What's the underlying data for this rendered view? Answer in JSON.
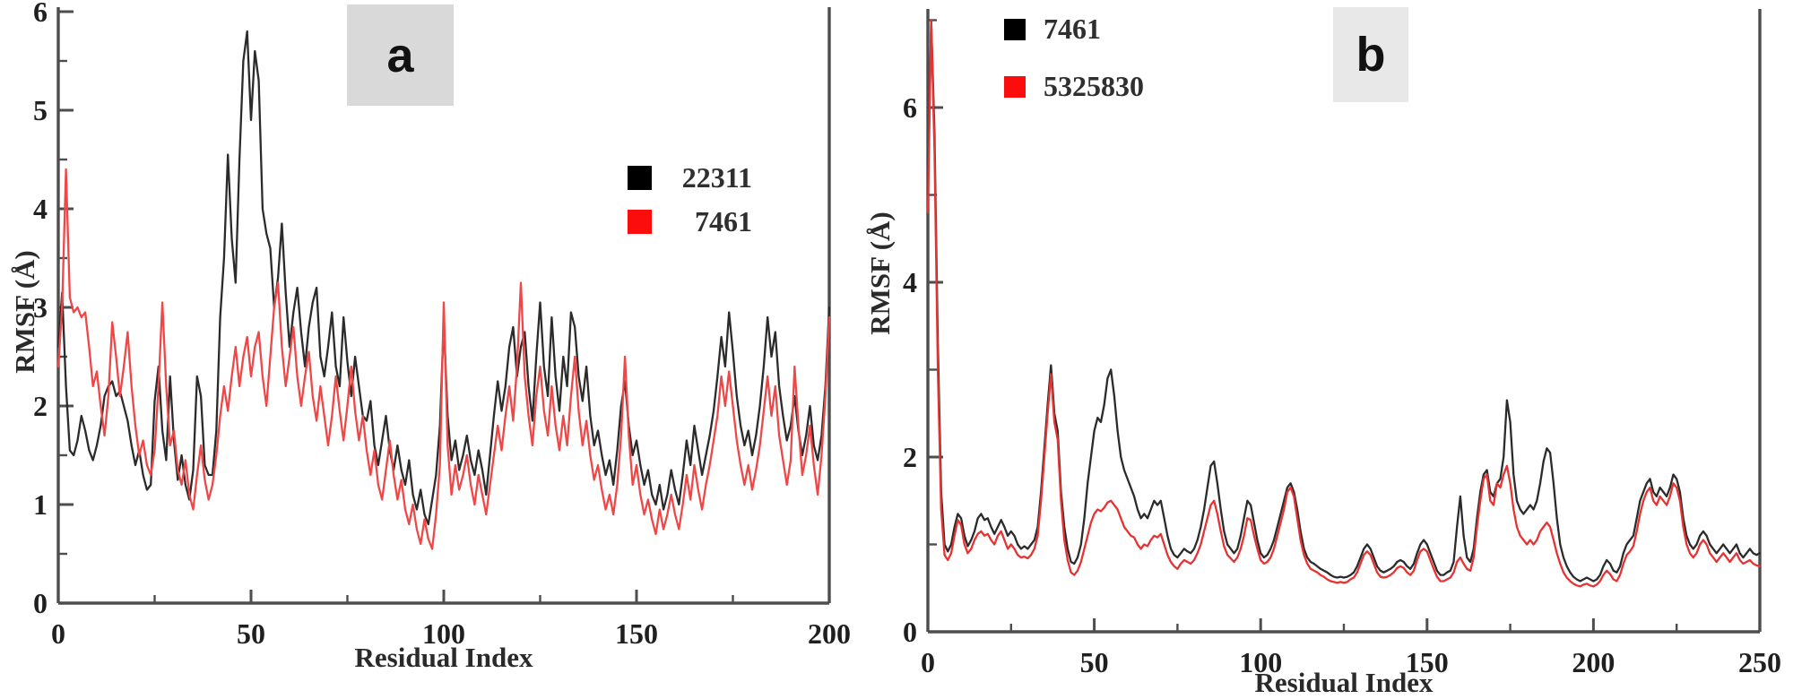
{
  "figure": {
    "background": "#ffffff",
    "colors": {
      "axis": "#4d4d4d",
      "tick_text": "#1f1f1f",
      "panel_label_bg_a": "#d9d9d9",
      "panel_label_bg_b": "#e8e8e8"
    }
  },
  "chart_data": [
    {
      "type": "line",
      "panel_label": "a",
      "title": "",
      "xlabel": "Residual Index",
      "ylabel": "RMSF (Å)",
      "xlim": [
        0,
        200
      ],
      "ylim": [
        0,
        6.2
      ],
      "xticks": [
        0,
        50,
        100,
        150,
        200
      ],
      "xminorticks": [
        25,
        75,
        125,
        175
      ],
      "yticks": [
        0,
        1,
        2,
        3,
        4,
        5,
        6
      ],
      "yminorticks": [
        0.5,
        1.5,
        2.5,
        3.5,
        4.5,
        5.5
      ],
      "grid": false,
      "legend_position": "inside upper right area of plot",
      "x_step": 1,
      "series": [
        {
          "name": "22311",
          "color": "#2b2b2b",
          "swatch_color": "#000000",
          "values": [
            2.6,
            3.15,
            2.2,
            1.55,
            1.5,
            1.65,
            1.9,
            1.75,
            1.55,
            1.45,
            1.6,
            1.8,
            2.1,
            2.2,
            2.25,
            2.1,
            2.15,
            2.0,
            1.85,
            1.6,
            1.4,
            1.55,
            1.3,
            1.15,
            1.2,
            2.05,
            2.4,
            1.75,
            1.45,
            2.3,
            1.65,
            1.25,
            1.5,
            1.2,
            1.05,
            1.35,
            2.3,
            2.1,
            1.4,
            1.3,
            1.3,
            1.75,
            2.9,
            3.5,
            4.55,
            3.7,
            3.25,
            4.5,
            5.5,
            5.8,
            4.9,
            5.6,
            5.3,
            4.0,
            3.75,
            3.6,
            3.0,
            3.3,
            3.85,
            3.15,
            2.6,
            2.95,
            3.2,
            2.75,
            2.4,
            2.8,
            3.05,
            3.2,
            2.5,
            2.3,
            2.6,
            2.95,
            2.4,
            2.2,
            2.9,
            2.45,
            2.1,
            2.5,
            2.2,
            1.9,
            1.85,
            2.05,
            1.6,
            1.4,
            1.65,
            1.9,
            1.55,
            1.35,
            1.6,
            1.35,
            1.2,
            1.45,
            1.1,
            0.95,
            1.15,
            0.9,
            0.8,
            1.05,
            1.3,
            1.8,
            2.85,
            1.9,
            1.45,
            1.65,
            1.35,
            1.5,
            1.7,
            1.45,
            1.3,
            1.55,
            1.35,
            1.1,
            1.5,
            1.9,
            2.25,
            1.95,
            2.2,
            2.6,
            2.8,
            2.3,
            2.6,
            2.75,
            2.2,
            1.85,
            2.5,
            3.05,
            2.4,
            2.1,
            2.9,
            2.3,
            1.95,
            2.5,
            2.2,
            2.95,
            2.8,
            2.3,
            2.05,
            2.4,
            1.9,
            1.6,
            1.75,
            1.5,
            1.3,
            1.45,
            1.2,
            1.55,
            2.0,
            2.25,
            1.8,
            1.5,
            1.65,
            1.4,
            1.2,
            1.35,
            1.1,
            1.0,
            1.2,
            0.95,
            1.1,
            1.35,
            1.15,
            1.0,
            1.3,
            1.65,
            1.4,
            1.8,
            1.55,
            1.3,
            1.5,
            1.7,
            1.95,
            2.3,
            2.7,
            2.4,
            2.95,
            2.55,
            2.1,
            1.8,
            1.6,
            1.75,
            1.5,
            1.7,
            2.0,
            2.4,
            2.9,
            2.5,
            2.75,
            2.2,
            1.9,
            1.65,
            1.8,
            2.1,
            1.75,
            1.5,
            1.7,
            2.0,
            1.6,
            1.45,
            1.7,
            2.2,
            3.0
          ]
        },
        {
          "name": "7461",
          "color": "#ef4747",
          "swatch_color": "#fb0d0d",
          "values": [
            2.4,
            3.0,
            4.4,
            3.1,
            2.95,
            3.0,
            2.9,
            2.95,
            2.6,
            2.2,
            2.35,
            2.0,
            1.7,
            2.1,
            2.85,
            2.5,
            2.1,
            2.4,
            2.75,
            2.2,
            1.8,
            1.5,
            1.65,
            1.4,
            1.3,
            1.55,
            2.2,
            3.05,
            2.2,
            1.6,
            1.75,
            1.35,
            1.2,
            1.45,
            1.1,
            0.95,
            1.3,
            1.6,
            1.25,
            1.05,
            1.2,
            1.5,
            1.9,
            2.2,
            1.95,
            2.3,
            2.6,
            2.2,
            2.5,
            2.7,
            2.3,
            2.6,
            2.75,
            2.3,
            2.0,
            2.5,
            3.0,
            3.25,
            2.6,
            2.2,
            2.5,
            2.8,
            2.3,
            2.0,
            2.3,
            2.55,
            2.1,
            1.85,
            2.2,
            1.9,
            1.6,
            1.9,
            2.3,
            1.95,
            1.65,
            2.0,
            2.4,
            1.95,
            1.65,
            1.9,
            1.55,
            1.3,
            1.55,
            1.2,
            1.05,
            1.35,
            1.65,
            1.3,
            1.05,
            1.25,
            0.95,
            0.8,
            1.0,
            0.75,
            0.6,
            0.85,
            0.65,
            0.55,
            0.9,
            1.4,
            3.05,
            1.6,
            1.1,
            1.4,
            1.15,
            1.3,
            1.5,
            1.2,
            1.0,
            1.3,
            1.1,
            0.9,
            1.2,
            1.5,
            1.8,
            1.55,
            1.9,
            2.2,
            1.85,
            2.4,
            3.25,
            2.3,
            1.9,
            1.6,
            2.1,
            2.4,
            1.95,
            1.7,
            2.2,
            1.8,
            1.55,
            1.9,
            1.6,
            2.1,
            2.5,
            1.95,
            1.6,
            1.85,
            1.5,
            1.25,
            1.4,
            1.15,
            0.95,
            1.1,
            0.9,
            1.2,
            1.7,
            2.5,
            1.7,
            1.2,
            1.4,
            1.1,
            0.9,
            1.05,
            0.85,
            0.7,
            0.95,
            0.75,
            0.9,
            1.1,
            0.9,
            0.75,
            1.0,
            1.3,
            1.05,
            1.4,
            1.15,
            0.95,
            1.2,
            1.4,
            1.65,
            1.9,
            2.3,
            2.0,
            2.35,
            2.0,
            1.65,
            1.4,
            1.2,
            1.4,
            1.15,
            1.35,
            1.6,
            1.95,
            2.3,
            1.9,
            2.2,
            1.7,
            1.45,
            1.2,
            1.45,
            2.4,
            1.8,
            1.3,
            1.5,
            1.8,
            1.4,
            1.1,
            1.5,
            2.1,
            2.9
          ]
        }
      ]
    },
    {
      "type": "line",
      "panel_label": "b",
      "title": "",
      "xlabel": "Residual Index",
      "ylabel": "RMSF (Å)",
      "xlim": [
        0,
        250
      ],
      "ylim": [
        0,
        7.1
      ],
      "xticks": [
        0,
        50,
        100,
        150,
        200,
        250
      ],
      "xminorticks": [
        25,
        75,
        125,
        175,
        225
      ],
      "yticks": [
        0,
        2,
        4,
        6
      ],
      "yminorticks": [
        1,
        3,
        5,
        7
      ],
      "grid": false,
      "legend_position": "upper left above plot area",
      "x_step": 1,
      "series": [
        {
          "name": "7461",
          "color": "#2b2b2b",
          "swatch_color": "#000000",
          "values": [
            5.0,
            7.0,
            5.7,
            3.3,
            1.6,
            1.0,
            0.92,
            1.0,
            1.2,
            1.35,
            1.3,
            1.1,
            0.98,
            1.05,
            1.15,
            1.3,
            1.35,
            1.28,
            1.3,
            1.2,
            1.12,
            1.2,
            1.28,
            1.2,
            1.1,
            1.15,
            1.1,
            1.0,
            0.95,
            0.98,
            0.95,
            1.0,
            1.05,
            1.2,
            1.6,
            2.1,
            2.6,
            3.05,
            2.5,
            2.3,
            1.6,
            1.2,
            0.95,
            0.8,
            0.78,
            0.85,
            1.0,
            1.3,
            1.7,
            2.0,
            2.3,
            2.45,
            2.4,
            2.6,
            2.9,
            3.0,
            2.7,
            2.3,
            2.0,
            1.85,
            1.75,
            1.65,
            1.55,
            1.4,
            1.3,
            1.35,
            1.3,
            1.4,
            1.5,
            1.45,
            1.5,
            1.3,
            1.1,
            0.95,
            0.88,
            0.85,
            0.9,
            0.95,
            0.92,
            0.9,
            0.95,
            1.05,
            1.2,
            1.4,
            1.65,
            1.9,
            1.95,
            1.7,
            1.4,
            1.15,
            1.0,
            0.95,
            0.9,
            0.95,
            1.1,
            1.3,
            1.5,
            1.45,
            1.25,
            1.05,
            0.9,
            0.85,
            0.88,
            0.95,
            1.05,
            1.2,
            1.35,
            1.5,
            1.65,
            1.7,
            1.6,
            1.4,
            1.15,
            0.95,
            0.85,
            0.8,
            0.78,
            0.75,
            0.72,
            0.7,
            0.68,
            0.65,
            0.63,
            0.62,
            0.63,
            0.62,
            0.63,
            0.65,
            0.68,
            0.75,
            0.85,
            0.95,
            1.0,
            0.95,
            0.85,
            0.75,
            0.7,
            0.68,
            0.7,
            0.72,
            0.75,
            0.8,
            0.82,
            0.8,
            0.75,
            0.72,
            0.78,
            0.9,
            1.0,
            1.05,
            1.0,
            0.9,
            0.8,
            0.7,
            0.65,
            0.65,
            0.68,
            0.7,
            0.8,
            1.2,
            1.55,
            1.1,
            0.85,
            0.8,
            0.95,
            1.3,
            1.6,
            1.8,
            1.85,
            1.6,
            1.55,
            1.7,
            1.75,
            2.0,
            2.65,
            2.4,
            1.8,
            1.5,
            1.4,
            1.35,
            1.4,
            1.45,
            1.4,
            1.5,
            1.7,
            1.95,
            2.1,
            2.05,
            1.7,
            1.3,
            1.0,
            0.85,
            0.75,
            0.68,
            0.63,
            0.6,
            0.58,
            0.6,
            0.62,
            0.6,
            0.58,
            0.6,
            0.65,
            0.75,
            0.82,
            0.78,
            0.7,
            0.68,
            0.75,
            0.9,
            1.0,
            1.05,
            1.1,
            1.3,
            1.5,
            1.6,
            1.7,
            1.75,
            1.6,
            1.55,
            1.65,
            1.6,
            1.55,
            1.65,
            1.8,
            1.75,
            1.6,
            1.3,
            1.1,
            1.0,
            0.95,
            1.0,
            1.1,
            1.15,
            1.1,
            1.0,
            0.95,
            0.9,
            0.95,
            1.0,
            0.95,
            0.9,
            0.95,
            1.0,
            0.9,
            0.85,
            0.9,
            0.95,
            0.9,
            0.88,
            0.9
          ]
        },
        {
          "name": "5325830",
          "color": "#e73232",
          "swatch_color": "#fb0d0d",
          "values": [
            4.8,
            7.0,
            5.5,
            3.0,
            1.4,
            0.88,
            0.82,
            0.9,
            1.1,
            1.28,
            1.22,
            1.0,
            0.9,
            0.95,
            1.05,
            1.12,
            1.15,
            1.1,
            1.12,
            1.05,
            1.0,
            1.1,
            1.15,
            1.05,
            0.95,
            1.0,
            0.95,
            0.88,
            0.85,
            0.86,
            0.84,
            0.88,
            0.95,
            1.1,
            1.5,
            2.0,
            2.5,
            2.95,
            2.4,
            2.2,
            1.5,
            1.05,
            0.82,
            0.68,
            0.65,
            0.7,
            0.8,
            0.95,
            1.1,
            1.25,
            1.35,
            1.4,
            1.38,
            1.42,
            1.48,
            1.5,
            1.45,
            1.4,
            1.3,
            1.2,
            1.15,
            1.1,
            1.08,
            1.0,
            0.95,
            1.0,
            0.98,
            1.05,
            1.1,
            1.08,
            1.12,
            1.0,
            0.88,
            0.8,
            0.75,
            0.72,
            0.78,
            0.82,
            0.8,
            0.78,
            0.82,
            0.9,
            1.0,
            1.15,
            1.3,
            1.45,
            1.5,
            1.35,
            1.15,
            0.98,
            0.88,
            0.84,
            0.8,
            0.85,
            0.95,
            1.1,
            1.3,
            1.28,
            1.1,
            0.95,
            0.82,
            0.78,
            0.8,
            0.85,
            0.95,
            1.1,
            1.25,
            1.4,
            1.6,
            1.65,
            1.55,
            1.3,
            1.05,
            0.88,
            0.78,
            0.72,
            0.7,
            0.68,
            0.65,
            0.63,
            0.6,
            0.58,
            0.57,
            0.56,
            0.57,
            0.56,
            0.57,
            0.6,
            0.62,
            0.68,
            0.78,
            0.88,
            0.92,
            0.88,
            0.78,
            0.68,
            0.63,
            0.62,
            0.63,
            0.65,
            0.68,
            0.73,
            0.75,
            0.73,
            0.68,
            0.65,
            0.7,
            0.82,
            0.92,
            0.95,
            0.92,
            0.82,
            0.72,
            0.63,
            0.58,
            0.58,
            0.6,
            0.62,
            0.68,
            0.8,
            0.85,
            0.78,
            0.72,
            0.7,
            0.85,
            1.2,
            1.5,
            1.75,
            1.8,
            1.5,
            1.45,
            1.7,
            1.65,
            1.8,
            1.9,
            1.7,
            1.4,
            1.2,
            1.1,
            1.05,
            1.0,
            1.05,
            1.0,
            1.05,
            1.15,
            1.2,
            1.25,
            1.2,
            1.05,
            0.9,
            0.78,
            0.68,
            0.62,
            0.58,
            0.55,
            0.53,
            0.52,
            0.54,
            0.55,
            0.53,
            0.52,
            0.54,
            0.58,
            0.65,
            0.7,
            0.66,
            0.6,
            0.58,
            0.65,
            0.78,
            0.88,
            0.92,
            0.98,
            1.15,
            1.35,
            1.5,
            1.6,
            1.65,
            1.5,
            1.45,
            1.55,
            1.5,
            1.45,
            1.55,
            1.7,
            1.65,
            1.5,
            1.2,
            1.0,
            0.9,
            0.85,
            0.9,
            1.0,
            1.05,
            1.0,
            0.9,
            0.85,
            0.8,
            0.85,
            0.9,
            0.85,
            0.8,
            0.85,
            0.9,
            0.82,
            0.78,
            0.8,
            0.82,
            0.78,
            0.76,
            0.75
          ]
        }
      ]
    }
  ]
}
